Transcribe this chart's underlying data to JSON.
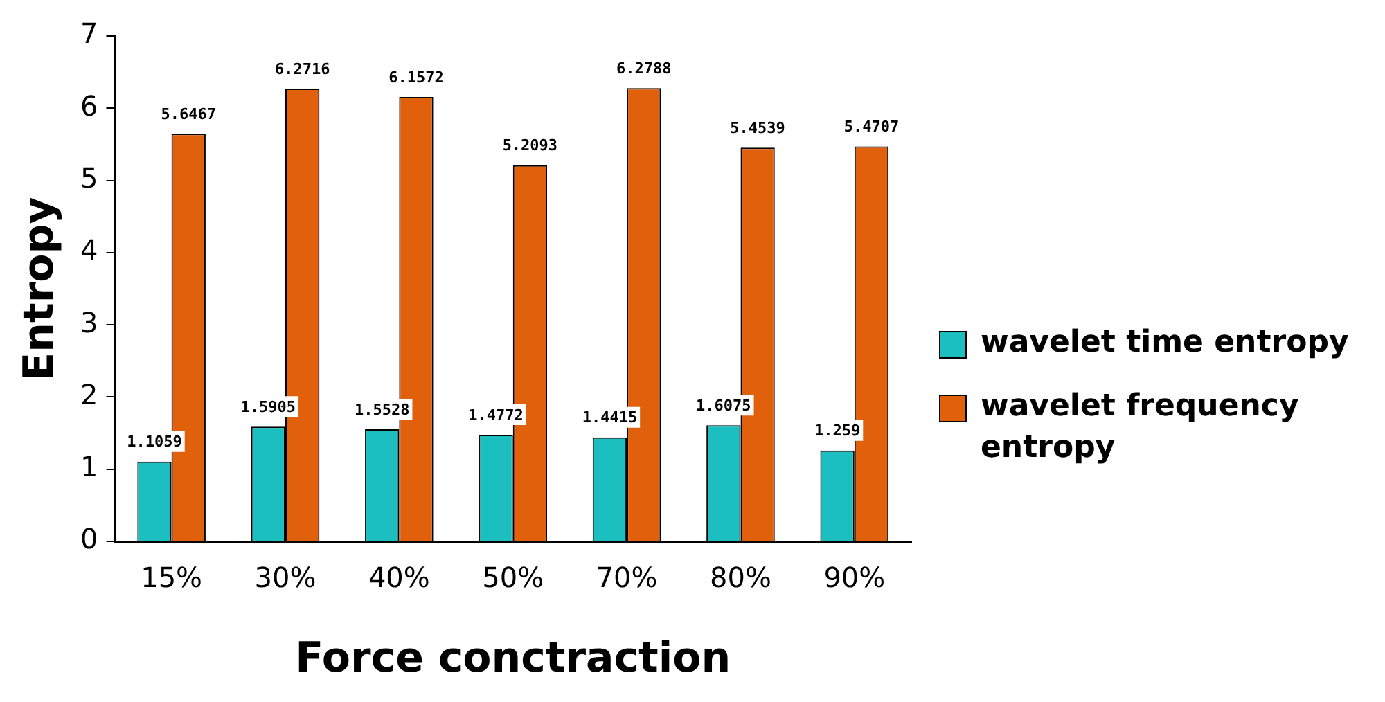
{
  "chart_data": {
    "type": "bar",
    "xlabel": "Force conctraction",
    "ylabel": "Entropy",
    "categories": [
      "15%",
      "30%",
      "40%",
      "50%",
      "70%",
      "80%",
      "90%"
    ],
    "series": [
      {
        "name": "wavelet time entropy",
        "color": "#1cbfbf",
        "values": [
          1.1059,
          1.5905,
          1.5528,
          1.4772,
          1.4415,
          1.6075,
          1.259
        ]
      },
      {
        "name": "wavelet frequency entropy",
        "color": "#e0600c",
        "values": [
          5.6467,
          6.2716,
          6.1572,
          5.2093,
          6.2788,
          5.4539,
          5.4707
        ]
      }
    ],
    "ylim": [
      0,
      7
    ],
    "yticks": [
      0,
      1,
      2,
      3,
      4,
      5,
      6,
      7
    ],
    "grid": false,
    "legend": "right",
    "data_labels": true
  }
}
